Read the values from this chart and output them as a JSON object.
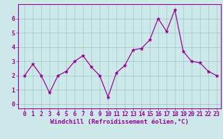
{
  "x": [
    0,
    1,
    2,
    3,
    4,
    5,
    6,
    7,
    8,
    9,
    10,
    11,
    12,
    13,
    14,
    15,
    16,
    17,
    18,
    19,
    20,
    21,
    22,
    23
  ],
  "y": [
    2.0,
    2.8,
    2.0,
    0.8,
    2.0,
    2.3,
    3.0,
    3.4,
    2.6,
    2.0,
    0.5,
    2.2,
    2.7,
    3.8,
    3.9,
    4.5,
    6.0,
    5.1,
    6.6,
    3.7,
    3.0,
    2.9,
    2.3,
    2.0
  ],
  "line_color": "#990099",
  "marker": "*",
  "marker_size": 3.5,
  "bg_color": "#cce8e8",
  "grid_color": "#aacccc",
  "xlabel": "Windchill (Refroidissement éolien,°C)",
  "ylabel_ticks": [
    0,
    1,
    2,
    3,
    4,
    5,
    6
  ],
  "xtick_labels": [
    "0",
    "1",
    "2",
    "3",
    "4",
    "5",
    "6",
    "7",
    "8",
    "9",
    "10",
    "11",
    "12",
    "13",
    "14",
    "15",
    "16",
    "17",
    "18",
    "19",
    "20",
    "21",
    "22",
    "23"
  ],
  "ylim": [
    -0.3,
    7.0
  ],
  "xlim": [
    -0.8,
    23.5
  ],
  "axis_label_fontsize": 6.5,
  "tick_fontsize": 6.0,
  "linewidth": 0.9
}
